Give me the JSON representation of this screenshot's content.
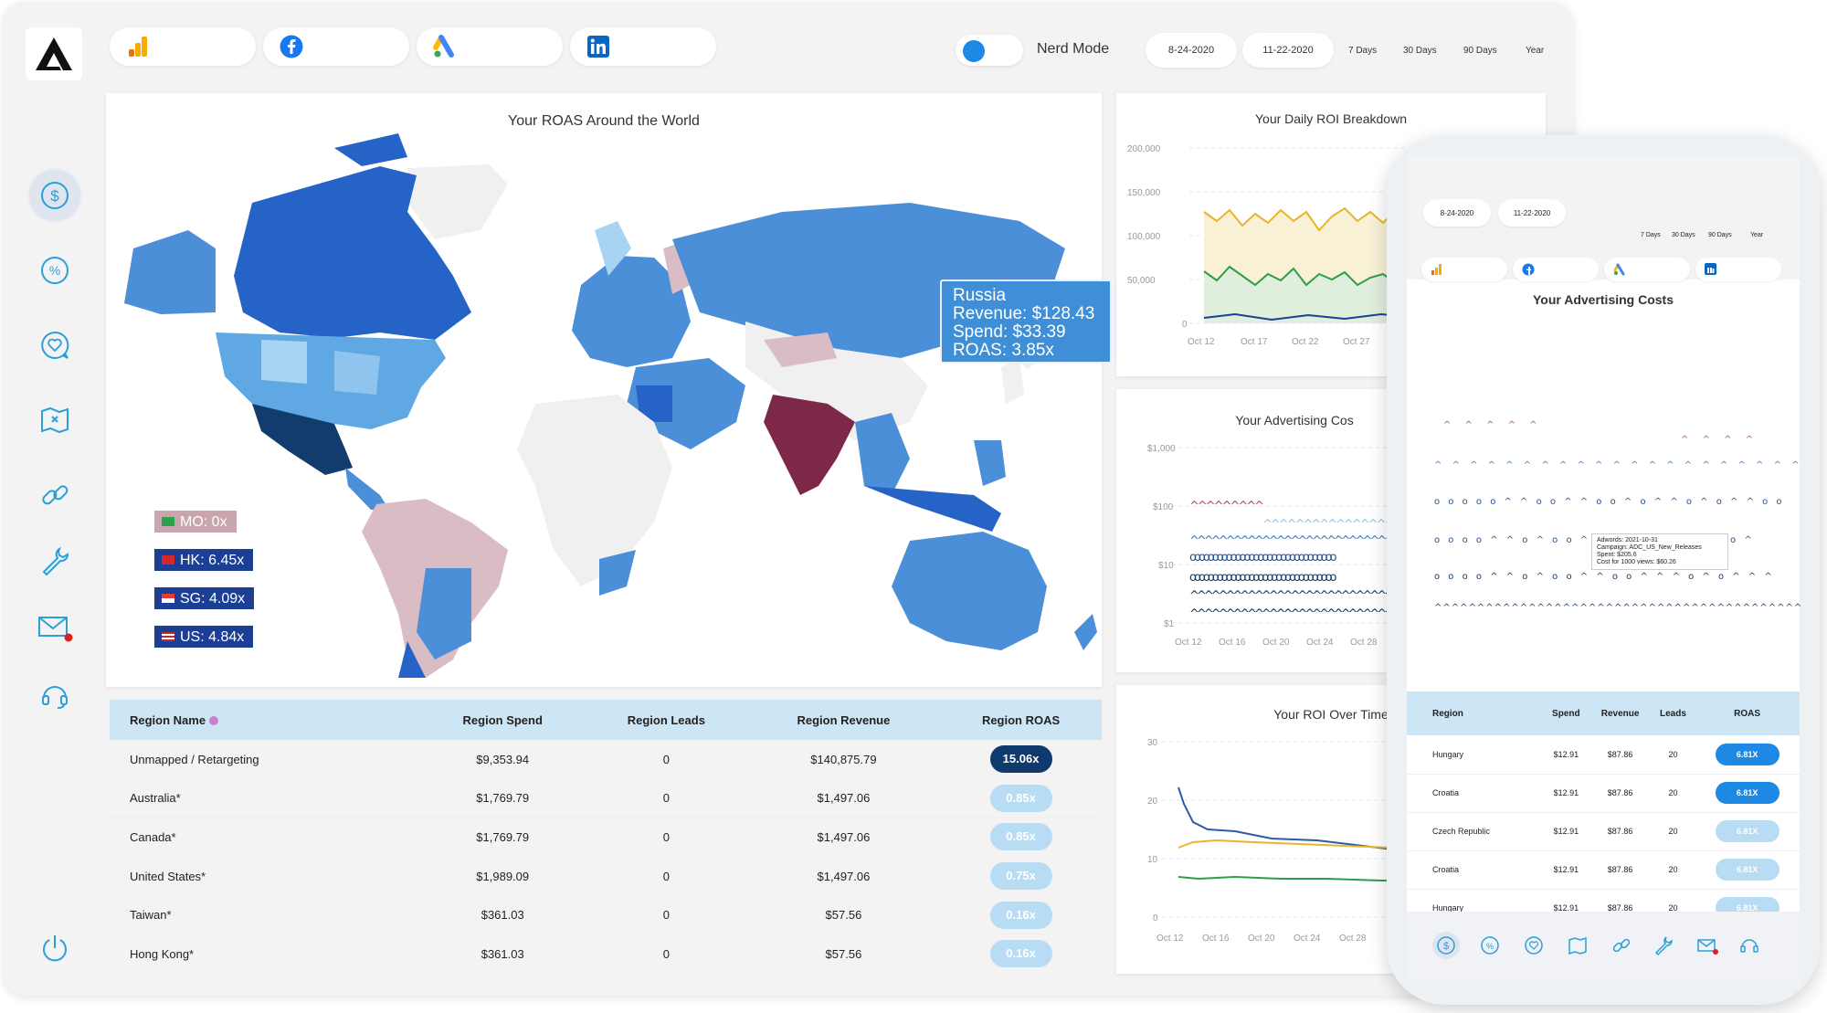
{
  "header": {
    "nerd_mode_label": "Nerd Mode",
    "start_date": "8-24-2020",
    "end_date": "11-22-2020",
    "ranges": [
      "7 Days",
      "30 Days",
      "90 Days",
      "Year"
    ],
    "sources": [
      "google-analytics-icon",
      "facebook-icon",
      "google-ads-icon",
      "linkedin-icon"
    ]
  },
  "sidebar": {
    "icons": [
      "dollar-icon",
      "percent-icon",
      "heart-chat-icon",
      "map-icon",
      "link-icon",
      "wrench-icon",
      "mail-icon",
      "headset-icon",
      "power-icon"
    ]
  },
  "map": {
    "title": "Your ROAS Around the World",
    "tooltip": {
      "country": "Russia",
      "revenue": "Revenue: $128.43",
      "spend": "Spend: $33.39",
      "roas": "ROAS: 3.85x"
    },
    "badges": [
      {
        "label": "MO: 0x"
      },
      {
        "label": "HK: 6.45x"
      },
      {
        "label": "SG: 4.09x"
      },
      {
        "label": "US: 4.84x"
      }
    ]
  },
  "region_table": {
    "headers": [
      "Region Name",
      "Region Spend",
      "Region Leads",
      "Region Revenue",
      "Region ROAS"
    ],
    "rows": [
      {
        "name": "Unmapped / Retargeting",
        "spend": "$9,353.94",
        "leads": "0",
        "revenue": "$140,875.79",
        "roas": "15.06x"
      },
      {
        "name": "Australia*",
        "spend": "$1,769.79",
        "leads": "0",
        "revenue": "$1,497.06",
        "roas": "0.85x"
      },
      {
        "name": "Canada*",
        "spend": "$1,769.79",
        "leads": "0",
        "revenue": "$1,497.06",
        "roas": "0.85x"
      },
      {
        "name": "United States*",
        "spend": "$1,989.09",
        "leads": "0",
        "revenue": "$1,497.06",
        "roas": "0.75x"
      },
      {
        "name": "Taiwan*",
        "spend": "$361.03",
        "leads": "0",
        "revenue": "$57.56",
        "roas": "0.16x"
      },
      {
        "name": "Hong Kong*",
        "spend": "$361.03",
        "leads": "0",
        "revenue": "$57.56",
        "roas": "0.16x"
      }
    ]
  },
  "roi_breakdown": {
    "title": "Your Daily ROI Breakdown",
    "yticks": [
      "200,000",
      "150,000",
      "100,000",
      "50,000",
      "0"
    ],
    "xticks": [
      "Oct 12",
      "Oct 17",
      "Oct 22",
      "Oct 27"
    ]
  },
  "ad_costs": {
    "title": "Your Advertising Cos",
    "yticks": [
      "$1,000",
      "$100",
      "$10",
      "$1"
    ],
    "xticks": [
      "Oct 12",
      "Oct 16",
      "Oct 20",
      "Oct 24",
      "Oct 28"
    ]
  },
  "roi_over_time": {
    "title": "Your ROI Over Time",
    "yticks": [
      "30",
      "20",
      "10",
      "0"
    ],
    "xticks": [
      "Oct 12",
      "Oct 16",
      "Oct 20",
      "Oct 24",
      "Oct 28"
    ]
  },
  "phone": {
    "start_date": "8-24-2020",
    "end_date": "11-22-2020",
    "ranges": [
      "7 Days",
      "30 Days",
      "90 Days",
      "Year"
    ],
    "chart_title": "Your Advertising Costs",
    "tooltip": {
      "line1": "Adwords: 2021-10-31",
      "line2": "Campaign: ADC_US_New_Releases",
      "line3": "Spent: $205.6",
      "line4": "Cost for 1000 views: $60.26"
    },
    "table_headers": [
      "Region",
      "Spend",
      "Revenue",
      "Leads",
      "ROAS"
    ],
    "rows": [
      {
        "region": "Hungary",
        "spend": "$12.91",
        "revenue": "$87.86",
        "leads": "20",
        "roas": "6.81X"
      },
      {
        "region": "Croatia",
        "spend": "$12.91",
        "revenue": "$87.86",
        "leads": "20",
        "roas": "6.81X"
      },
      {
        "region": "Czech Republic",
        "spend": "$12.91",
        "revenue": "$87.86",
        "leads": "20",
        "roas": "6.81X"
      },
      {
        "region": "Croatia",
        "spend": "$12.91",
        "revenue": "$87.86",
        "leads": "20",
        "roas": "6.81X"
      },
      {
        "region": "Hungary",
        "spend": "$12.91",
        "revenue": "$87.86",
        "leads": "20",
        "roas": "6.81X"
      }
    ]
  },
  "colors": {
    "accent": "#1e88e5",
    "dark_blue": "#103a6e",
    "light_blue": "#b8dcf3",
    "table_header": "#cde6f6",
    "mauve": "#c9a5ae",
    "india": "#7d2848"
  }
}
